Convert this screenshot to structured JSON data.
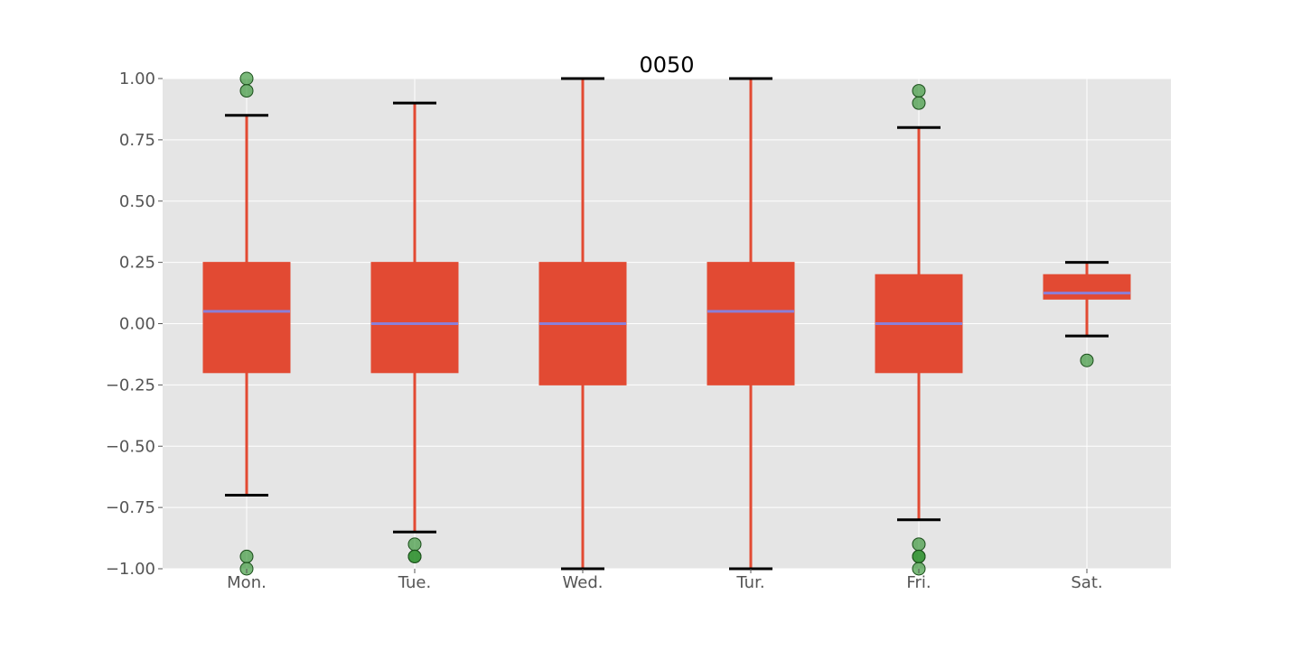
{
  "colors": {
    "plot_background": "#e5e5e5",
    "grid": "#ffffff",
    "box_fill": "#e24a33",
    "whisker": "#e24a33",
    "median": "#8b7fd8",
    "cap": "#000000",
    "outlier_fill": "#228b22",
    "outlier_edge": "#1a4d1a",
    "tick_text": "#555555",
    "title_text": "#000000"
  },
  "chart_data": {
    "type": "box",
    "title": "0050",
    "xlabel": "",
    "ylabel": "",
    "ylim": [
      -1.0,
      1.0
    ],
    "grid": true,
    "yticks": [
      1.0,
      0.75,
      0.5,
      0.25,
      0.0,
      -0.25,
      -0.5,
      -0.75,
      -1.0
    ],
    "ytick_labels": [
      "1.00",
      "0.75",
      "0.50",
      "0.25",
      "0.00",
      "−0.25",
      "−0.50",
      "−0.75",
      "−1.00"
    ],
    "categories": [
      "Mon.",
      "Tue.",
      "Wed.",
      "Tur.",
      "Fri.",
      "Sat."
    ],
    "boxes": [
      {
        "category": "Mon.",
        "whisker_low": -0.7,
        "q1": -0.2,
        "median": 0.05,
        "q3": 0.25,
        "whisker_high": 0.85,
        "outliers": [
          1.0,
          0.95,
          -0.95,
          -1.0
        ]
      },
      {
        "category": "Tue.",
        "whisker_low": -0.85,
        "q1": -0.2,
        "median": 0.0,
        "q3": 0.25,
        "whisker_high": 0.9,
        "outliers": [
          -0.9,
          -0.95,
          -0.95
        ]
      },
      {
        "category": "Wed.",
        "whisker_low": -1.0,
        "q1": -0.25,
        "median": 0.0,
        "q3": 0.25,
        "whisker_high": 1.0,
        "outliers": []
      },
      {
        "category": "Tur.",
        "whisker_low": -1.0,
        "q1": -0.25,
        "median": 0.05,
        "q3": 0.25,
        "whisker_high": 1.0,
        "outliers": []
      },
      {
        "category": "Fri.",
        "whisker_low": -0.8,
        "q1": -0.2,
        "median": 0.0,
        "q3": 0.2,
        "whisker_high": 0.8,
        "outliers": [
          0.95,
          0.9,
          -0.9,
          -0.95,
          -0.95,
          -1.0
        ]
      },
      {
        "category": "Sat.",
        "whisker_low": -0.05,
        "q1": 0.1,
        "median": 0.125,
        "q3": 0.2,
        "whisker_high": 0.25,
        "outliers": [
          -0.15
        ]
      }
    ]
  }
}
